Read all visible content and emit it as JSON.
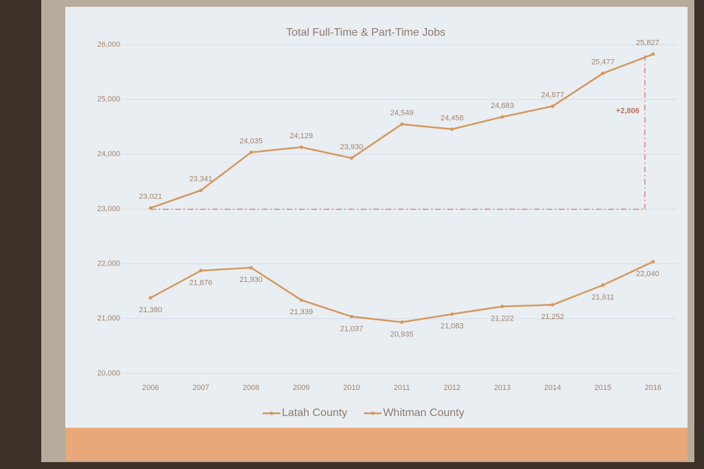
{
  "chart_data": {
    "type": "line",
    "title": "Total Full-Time & Part-Time Jobs",
    "categories": [
      "2006",
      "2007",
      "2008",
      "2009",
      "2010",
      "2011",
      "2012",
      "2013",
      "2014",
      "2015",
      "2016"
    ],
    "series": [
      {
        "name": "Latah County",
        "color": "#d6975c",
        "values": [
          21380,
          21876,
          21930,
          21339,
          21037,
          20935,
          21083,
          21222,
          21252,
          21611,
          22040
        ],
        "value_labels": [
          "21,380",
          "21,876",
          "21,930",
          "21,339",
          "21,037",
          "20,935",
          "21,083",
          "21,222",
          "21,252",
          "21,611",
          "22,040"
        ]
      },
      {
        "name": "Whitman County",
        "color": "#d6975c",
        "values": [
          23021,
          23341,
          24035,
          24129,
          23930,
          24549,
          24458,
          24683,
          24877,
          25477,
          25827
        ],
        "value_labels": [
          "23,021",
          "23,341",
          "24,035",
          "24,129",
          "23,930",
          "24,549",
          "24,458",
          "24,683",
          "24,877",
          "25,477",
          "25,827"
        ]
      }
    ],
    "annotation": "+2,806",
    "ylim": [
      20000,
      26000
    ],
    "yticks": [
      {
        "value": 20000,
        "label": "20,000"
      },
      {
        "value": 21000,
        "label": "21,000"
      },
      {
        "value": 22000,
        "label": "22,000"
      },
      {
        "value": 23000,
        "label": "23,000"
      },
      {
        "value": 24000,
        "label": "24,000"
      },
      {
        "value": 25000,
        "label": "25,000"
      },
      {
        "value": 26000,
        "label": "26,000"
      }
    ],
    "grid": true
  }
}
